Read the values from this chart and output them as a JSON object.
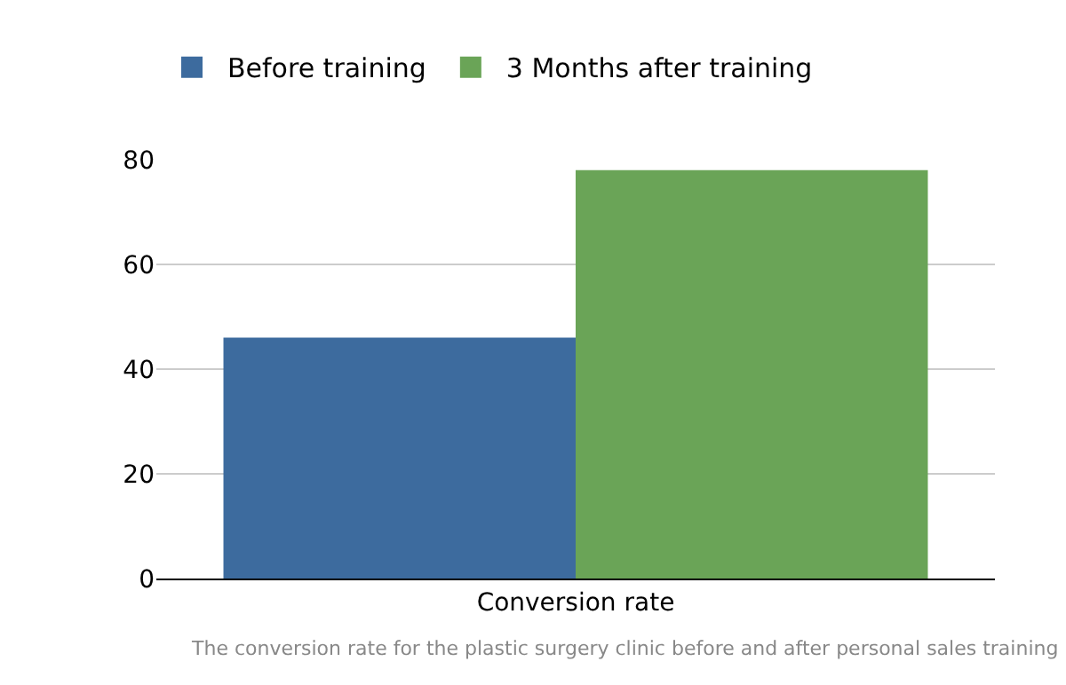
{
  "chart_data": {
    "type": "bar",
    "categories": [
      "Conversion rate"
    ],
    "series": [
      {
        "name": "Before training",
        "color": "#3d6b9e",
        "values": [
          46
        ]
      },
      {
        "name": "3 Months after training",
        "color": "#6aa457",
        "values": [
          78
        ]
      }
    ],
    "ylim": [
      0,
      80
    ],
    "yticks": [
      0,
      20,
      40,
      60,
      80
    ],
    "grid": "y",
    "legend": "top left",
    "annotations": [
      "The conversion rate for the plastic surgery clinic before and after personal sales training"
    ]
  }
}
